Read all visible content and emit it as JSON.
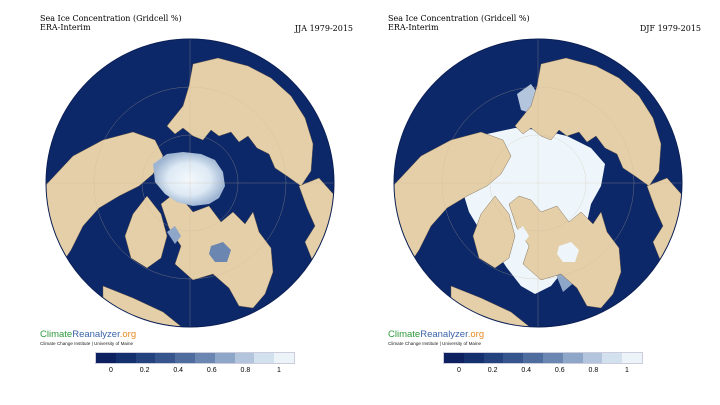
{
  "panels": [
    {
      "title_line1": "Sea Ice Concentration (Gridcell %)",
      "title_line2": "ERA-Interim",
      "period": "JJA 1979-2015",
      "brand_part1": "Climate",
      "brand_part2": "Reanalyzer",
      "brand_part3": ".org",
      "brand_sub": "Climate Change Institute | University of Maine"
    },
    {
      "title_line1": "Sea Ice Concentration (Gridcell %)",
      "title_line2": "ERA-Interim",
      "period": "DJF 1979-2015",
      "brand_part1": "Climate",
      "brand_part2": "Reanalyzer",
      "brand_part3": ".org",
      "brand_sub": "Climate Change Institute | University of Maine"
    }
  ],
  "colorbar": {
    "ticks": [
      "0",
      "0.2",
      "0.4",
      "0.6",
      "0.8",
      "1"
    ],
    "colors": [
      "#0d2160",
      "#15306f",
      "#24427e",
      "#36558d",
      "#4e6c9e",
      "#6b87b1",
      "#8ea6c7",
      "#b2c5dc",
      "#d3e1ee",
      "#ecf4fa"
    ]
  },
  "colors": {
    "ocean": "#0d2868",
    "land": "#e5cfa8",
    "ice": "#eef6fb"
  }
}
